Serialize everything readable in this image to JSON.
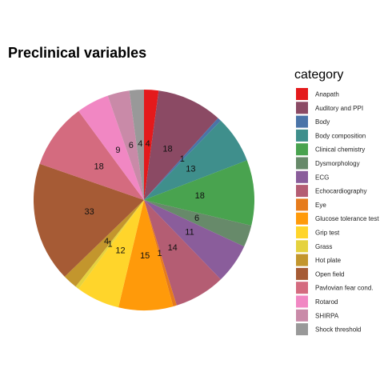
{
  "chart_data": {
    "type": "pie",
    "title": "Preclinical variables",
    "legend_title": "category",
    "legend_position": "right",
    "slices": [
      {
        "label": "Anapath",
        "value": 4,
        "color": "#e41a1c"
      },
      {
        "label": "Auditory and PPI",
        "value": 18,
        "color": "#8b4a64"
      },
      {
        "label": "Body",
        "value": 1,
        "color": "#4a74a8"
      },
      {
        "label": "Body composition",
        "value": 13,
        "color": "#3f8f8c"
      },
      {
        "label": "Clinical chemistry",
        "value": 18,
        "color": "#49a34f"
      },
      {
        "label": "Dysmorphology",
        "value": 6,
        "color": "#678a6a"
      },
      {
        "label": "ECG",
        "value": 11,
        "color": "#8a5d9b"
      },
      {
        "label": "Echocardiography",
        "value": 14,
        "color": "#b45d73"
      },
      {
        "label": "Eye",
        "value": 1,
        "color": "#e67b1c"
      },
      {
        "label": "Glucose tolerance test",
        "value": 15,
        "color": "#ff9a0a"
      },
      {
        "label": "Grip test",
        "value": 12,
        "color": "#ffd52b"
      },
      {
        "label": "Grass",
        "value": 1,
        "color": "#e5d23e"
      },
      {
        "label": "Hot plate",
        "value": 4,
        "color": "#c3962d"
      },
      {
        "label": "Open field",
        "value": 33,
        "color": "#a65b35"
      },
      {
        "label": "Pavlovian fear cond.",
        "value": 18,
        "color": "#d46b7f"
      },
      {
        "label": "Rotarod",
        "value": 9,
        "color": "#f187c3"
      },
      {
        "label": "SHIRPA",
        "value": 6,
        "color": "#c98aa8"
      },
      {
        "label": "Shock threshold",
        "value": 4,
        "color": "#999999"
      }
    ]
  }
}
